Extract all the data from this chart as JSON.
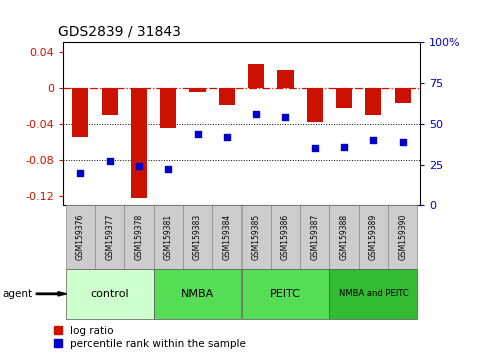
{
  "title": "GDS2839 / 31843",
  "samples": [
    "GSM159376",
    "GSM159377",
    "GSM159378",
    "GSM159381",
    "GSM159383",
    "GSM159384",
    "GSM159385",
    "GSM159386",
    "GSM159387",
    "GSM159388",
    "GSM159389",
    "GSM159390"
  ],
  "log_ratio": [
    -0.055,
    -0.03,
    -0.122,
    -0.044,
    -0.005,
    -0.019,
    0.026,
    0.02,
    -0.038,
    -0.022,
    -0.03,
    -0.017
  ],
  "percentile_rank": [
    20,
    27,
    24,
    22,
    44,
    42,
    56,
    54,
    35,
    36,
    40,
    39
  ],
  "groups": [
    {
      "label": "control",
      "start": 0,
      "end": 3,
      "color": "#ccffcc"
    },
    {
      "label": "NMBA",
      "start": 3,
      "end": 6,
      "color": "#55dd55"
    },
    {
      "label": "PEITC",
      "start": 6,
      "end": 9,
      "color": "#55dd55"
    },
    {
      "label": "NMBA and PEITC",
      "start": 9,
      "end": 12,
      "color": "#33bb33"
    }
  ],
  "bar_color": "#cc1100",
  "dot_color": "#0000cc",
  "ylim_left": [
    -0.13,
    0.05
  ],
  "ylim_right": [
    0,
    100
  ],
  "yticks_left": [
    -0.12,
    -0.08,
    -0.04,
    0.0,
    0.04
  ],
  "yticks_right": [
    0,
    25,
    50,
    75,
    100
  ],
  "bar_width": 0.55,
  "figsize": [
    4.83,
    3.54
  ],
  "dpi": 100,
  "legend_items": [
    "log ratio",
    "percentile rank within the sample"
  ],
  "sample_box_color": "#cccccc",
  "sample_box_edge": "#888888",
  "group_edge": "#555555",
  "title_fontsize": 10,
  "tick_fontsize": 8,
  "sample_fontsize": 5.5,
  "group_fontsize": 8,
  "legend_fontsize": 7.5
}
